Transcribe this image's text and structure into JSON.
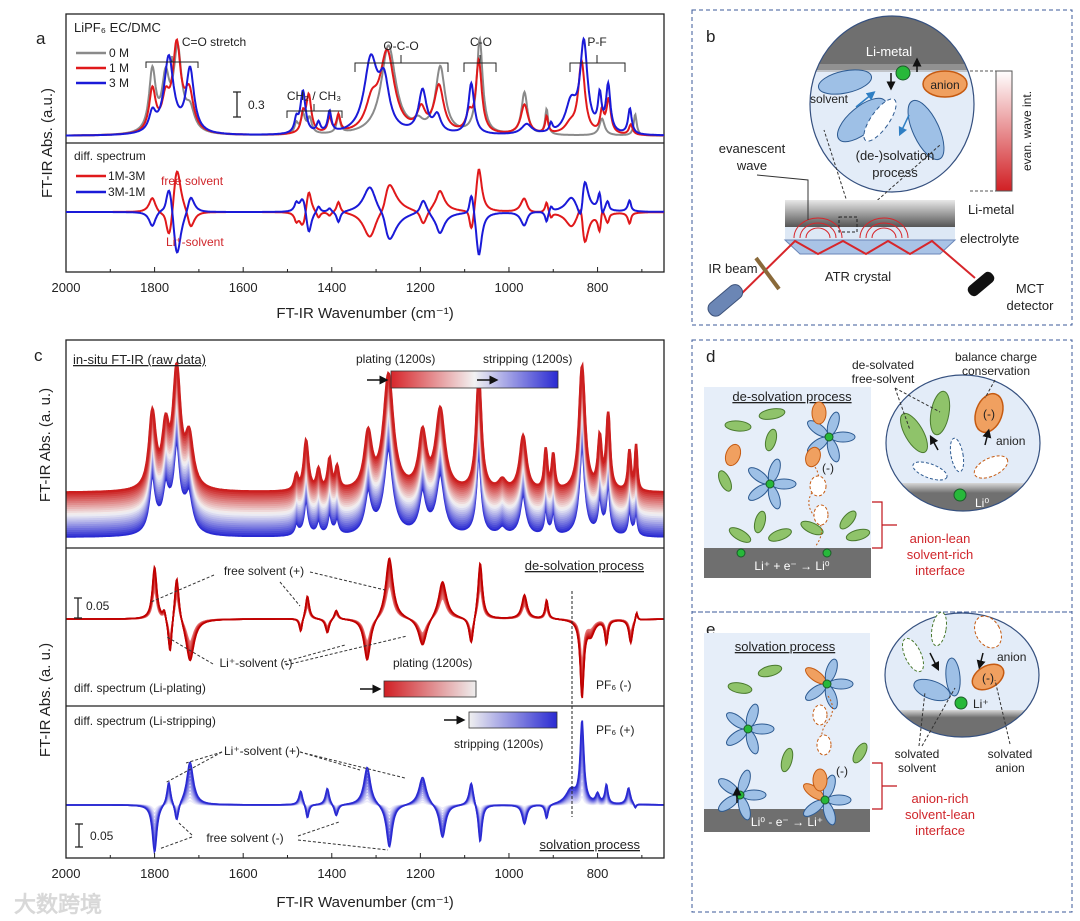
{
  "watermark": "大数跨境",
  "panel_a": {
    "letter": "a",
    "legend_title": "LiPF₆ EC/DMC",
    "legend": [
      "0 M",
      "1 M",
      "3 M"
    ],
    "bands": [
      "C=O stretch",
      "CH₂ / CH₃",
      "O-C-O",
      "C-O",
      "P-F"
    ],
    "scalebar": "0.3",
    "diff_title": "diff. spectrum",
    "diff_legend": [
      "1M-3M",
      "3M-1M"
    ],
    "free_solvent": "free solvent",
    "li_solvent": "Li⁺-solvent",
    "ylabel": "FT-IR Abs. (a.u.)",
    "xlabel": "FT-IR Wavenumber (cm⁻¹)"
  },
  "panel_b": {
    "letter": "b",
    "li_metal_top": "Li-metal",
    "anion": "anion",
    "solvent": "solvent",
    "process_1": "(de-)solvation",
    "process_2": "process",
    "evan_bar": "evan. wave int.",
    "evanescent_1": "evanescent",
    "evanescent_2": "wave",
    "li_metal": "Li-metal",
    "electrolyte": "electrolyte",
    "ir_beam": "IR beam",
    "atr": "ATR crystal",
    "mct_1": "MCT",
    "mct_2": "detector"
  },
  "panel_c": {
    "letter": "c",
    "raw_title": "in-situ FT-IR (raw data)",
    "plating_top": "plating (1200s)",
    "stripping_top": "stripping (1200s)",
    "desolv_title": "de-solvation process",
    "free_plus": "free solvent (+)",
    "li_minus": "Li⁺-solvent (-)",
    "scale1": "0.05",
    "plating_mid": "plating (1200s)",
    "diff_plating": "diff. spectrum (Li-plating)",
    "pf6_minus": "PF₆ (-)",
    "diff_stripping": "diff. spectrum (Li-stripping)",
    "stripping_bot": "stripping (1200s)",
    "pf6_plus": "PF₆ (+)",
    "li_plus": "Li⁺-solvent (+)",
    "free_minus": "free solvent (-)",
    "scale2": "0.05",
    "solv_title": "solvation process",
    "ylabel_top": "FT-IR Abs. (a. u.)",
    "ylabel_bot": "FT-IR Abs. (a. u.)",
    "xlabel": "FT-IR Wavenumber (cm⁻¹)"
  },
  "panel_d": {
    "letter": "d",
    "desolvated_1": "de-solvated",
    "desolvated_2": "free-solvent",
    "balance_1": "balance charge",
    "balance_2": "conservation",
    "title": "de-solvation process",
    "minus": "(-)",
    "circle_minus": "(-)",
    "anion": "anion",
    "li0": "Li⁰",
    "reaction": "Li⁺ + e⁻ → Li⁰",
    "red_1": "anion-lean",
    "red_2": "solvent-rich",
    "red_3": "interface"
  },
  "panel_e": {
    "letter": "e",
    "title": "solvation process",
    "anion": "anion",
    "circle_minus": "(-)",
    "minus": "(-)",
    "li_plus": "Li⁺",
    "solv_solvent_1": "solvated",
    "solv_solvent_2": "solvent",
    "solv_anion_1": "solvated",
    "solv_anion_2": "anion",
    "reaction": "Li⁰ - e⁻ → Li⁺",
    "red_1": "anion-rich",
    "red_2": "solvent-lean",
    "red_3": "interface"
  },
  "chart_data": [
    {
      "id": "a-top",
      "type": "line",
      "title": "LiPF6 EC/DMC",
      "xlabel": "FT-IR Wavenumber (cm-1)",
      "ylabel": "FT-IR Abs. (a.u.)",
      "xlim": [
        2000,
        650
      ],
      "xticks": [
        2000,
        1800,
        1600,
        1400,
        1200,
        1000,
        800
      ],
      "peak_format": "[center cm-1, height a.u., half-width cm-1]",
      "series": [
        {
          "name": "0 M",
          "color": "#8a8a8a",
          "peaks": [
            [
              1805,
              0.72,
              9
            ],
            [
              1775,
              0.6,
              10
            ],
            [
              1748,
              0.95,
              11
            ],
            [
              1720,
              0.25,
              12
            ],
            [
              1480,
              0.12,
              5
            ],
            [
              1465,
              0.22,
              6
            ],
            [
              1450,
              0.18,
              6
            ],
            [
              1385,
              0.2,
              5
            ],
            [
              1272,
              1.05,
              20
            ],
            [
              1205,
              0.1,
              12
            ],
            [
              1155,
              0.78,
              13
            ],
            [
              1066,
              1.12,
              8
            ],
            [
              965,
              0.5,
              8
            ],
            [
              915,
              0.3,
              4
            ],
            [
              790,
              0.2,
              7
            ],
            [
              715,
              0.25,
              4
            ]
          ]
        },
        {
          "name": "1 M",
          "color": "#e0191b",
          "peaks": [
            [
              1805,
              0.5,
              9
            ],
            [
              1775,
              0.35,
              10
            ],
            [
              1750,
              1.0,
              11
            ],
            [
              1722,
              0.45,
              12
            ],
            [
              1465,
              0.2,
              5
            ],
            [
              1452,
              0.45,
              7
            ],
            [
              1405,
              0.18,
              5
            ],
            [
              1385,
              0.2,
              5
            ],
            [
              1310,
              0.3,
              16
            ],
            [
              1275,
              0.95,
              20
            ],
            [
              1198,
              0.25,
              11
            ],
            [
              1158,
              0.55,
              13
            ],
            [
              1090,
              0.2,
              8
            ],
            [
              1068,
              0.85,
              8
            ],
            [
              965,
              0.35,
              10
            ],
            [
              915,
              0.2,
              4
            ],
            [
              862,
              0.1,
              14
            ],
            [
              836,
              0.85,
              9
            ],
            [
              790,
              0.25,
              5
            ],
            [
              775,
              0.4,
              6
            ],
            [
              725,
              0.12,
              5
            ]
          ]
        },
        {
          "name": "3 M",
          "color": "#1a1ad8",
          "peaks": [
            [
              1805,
              0.22,
              9
            ],
            [
              1768,
              0.9,
              13
            ],
            [
              1720,
              0.75,
              11
            ],
            [
              1480,
              0.15,
              5
            ],
            [
              1465,
              0.5,
              7
            ],
            [
              1430,
              0.12,
              5
            ],
            [
              1405,
              0.25,
              5
            ],
            [
              1312,
              0.85,
              18
            ],
            [
              1282,
              0.55,
              14
            ],
            [
              1195,
              0.5,
              11
            ],
            [
              1162,
              0.2,
              10
            ],
            [
              1085,
              0.6,
              8
            ],
            [
              960,
              0.12,
              14
            ],
            [
              905,
              0.1,
              4
            ],
            [
              860,
              0.35,
              15
            ],
            [
              831,
              1.05,
              10
            ],
            [
              795,
              0.4,
              5
            ],
            [
              776,
              0.55,
              6
            ],
            [
              727,
              0.3,
              5
            ]
          ]
        }
      ],
      "scalebar": 0.3
    },
    {
      "id": "a-diff",
      "type": "line",
      "title": "diff. spectrum",
      "series": [
        {
          "name": "1M-3M",
          "color": "#e0191b",
          "formula": "1 M - 3 M"
        },
        {
          "name": "3M-1M",
          "color": "#1a1ad8",
          "formula": "3 M - 1 M"
        }
      ]
    },
    {
      "id": "c-raw",
      "type": "line",
      "title": "in-situ FT-IR (raw data)",
      "n_curves": 24,
      "color_start": "#cc1f1f",
      "color_mid": "#f4f4f4",
      "color_end": "#2a2ad2",
      "baseline_drift": 0.45,
      "peaks": [
        [
          1805,
          0.75,
          9
        ],
        [
          1775,
          0.55,
          9
        ],
        [
          1750,
          1.15,
          10
        ],
        [
          1722,
          0.5,
          11
        ],
        [
          1480,
          0.15,
          5
        ],
        [
          1458,
          0.5,
          6
        ],
        [
          1430,
          0.2,
          5
        ],
        [
          1405,
          0.3,
          5
        ],
        [
          1388,
          0.22,
          5
        ],
        [
          1318,
          0.55,
          10
        ],
        [
          1272,
          1.15,
          13
        ],
        [
          1195,
          0.55,
          10
        ],
        [
          1155,
          0.8,
          12
        ],
        [
          1068,
          1.15,
          7
        ],
        [
          1015,
          0.1,
          10
        ],
        [
          968,
          0.55,
          9
        ],
        [
          917,
          0.4,
          4
        ],
        [
          900,
          0.35,
          4
        ],
        [
          835,
          1.25,
          8
        ],
        [
          795,
          0.5,
          5
        ],
        [
          776,
          0.75,
          5
        ],
        [
          728,
          0.4,
          4
        ],
        [
          713,
          0.45,
          3
        ]
      ]
    },
    {
      "id": "c-plating",
      "type": "line",
      "title": "diff. spectrum (Li-plating)",
      "n_curves": 12,
      "color_start": "#e88080",
      "color_end": "#c00000",
      "scalebar": 0.05,
      "peaks": [
        [
          1800,
          0.11,
          6
        ],
        [
          1778,
          0.02,
          4
        ],
        [
          1765,
          -0.08,
          5
        ],
        [
          1750,
          0.1,
          6
        ],
        [
          1720,
          -0.09,
          11
        ],
        [
          1470,
          -0.03,
          4
        ],
        [
          1455,
          0.05,
          5
        ],
        [
          1410,
          -0.03,
          5
        ],
        [
          1390,
          0.02,
          5
        ],
        [
          1320,
          -0.09,
          9
        ],
        [
          1270,
          0.13,
          10
        ],
        [
          1195,
          -0.06,
          11
        ],
        [
          1150,
          0.08,
          11
        ],
        [
          1085,
          -0.06,
          6
        ],
        [
          1065,
          0.12,
          6
        ],
        [
          965,
          0.05,
          7
        ],
        [
          915,
          0.04,
          4
        ],
        [
          835,
          -0.16,
          5
        ],
        [
          815,
          -0.03,
          10
        ],
        [
          780,
          -0.05,
          4
        ],
        [
          725,
          -0.05,
          5
        ],
        [
          712,
          0.02,
          3
        ]
      ]
    },
    {
      "id": "c-stripping",
      "type": "line",
      "title": "diff. spectrum (Li-stripping)",
      "n_curves": 12,
      "color_start": "#ecebfa",
      "color_end": "#2a2ad2",
      "scalebar": 0.05,
      "peaks": [
        [
          1800,
          -0.1,
          6
        ],
        [
          1768,
          0.05,
          5
        ],
        [
          1750,
          -0.04,
          5
        ],
        [
          1720,
          0.09,
          9
        ],
        [
          1470,
          0.03,
          5
        ],
        [
          1455,
          -0.03,
          4
        ],
        [
          1410,
          0.035,
          5
        ],
        [
          1390,
          -0.025,
          5
        ],
        [
          1320,
          0.08,
          9
        ],
        [
          1270,
          -0.09,
          8
        ],
        [
          1195,
          0.06,
          10
        ],
        [
          1150,
          -0.07,
          8
        ],
        [
          1085,
          0.05,
          6
        ],
        [
          1065,
          -0.08,
          5
        ],
        [
          965,
          -0.04,
          6
        ],
        [
          915,
          -0.03,
          4
        ],
        [
          860,
          0.03,
          14
        ],
        [
          835,
          0.17,
          5
        ],
        [
          800,
          0.02,
          5
        ],
        [
          780,
          0.04,
          4
        ],
        [
          730,
          0.035,
          5
        ],
        [
          715,
          -0.01,
          3
        ]
      ]
    }
  ]
}
